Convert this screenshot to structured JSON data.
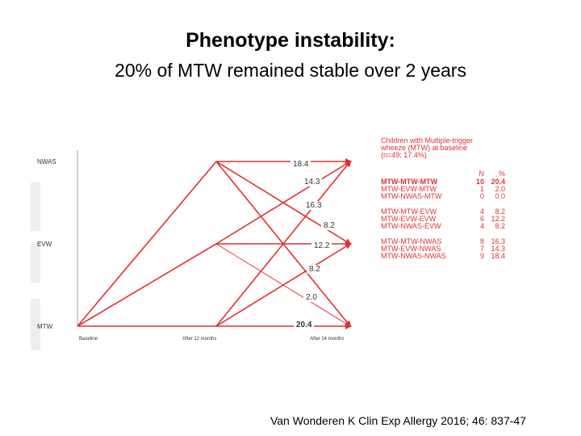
{
  "title": "Phenotype instability:",
  "subtitle": "20% of MTW remained stable over 2 years",
  "diagram": {
    "states": [
      "NWAS",
      "EVW",
      "MTW"
    ],
    "times": [
      "Baseline",
      "After 12 months",
      "After 24 months"
    ],
    "values": [
      {
        "label": "18.4",
        "bold": false
      },
      {
        "label": "14.3",
        "bold": false
      },
      {
        "label": "16.3",
        "bold": false
      },
      {
        "label": "8.2",
        "bold": false
      },
      {
        "label": "12.2",
        "bold": false
      },
      {
        "label": "8.2",
        "bold": false
      },
      {
        "label": "2.0",
        "bold": false
      },
      {
        "label": "20.4",
        "bold": true
      }
    ],
    "line_color": "#e03030"
  },
  "legend": {
    "heading": [
      "Children with Multiple-trigger",
      "wheeze (MTW) at baseline",
      "(n=49; 17.4%)"
    ],
    "col_n": "N",
    "col_pct": "%",
    "groups": [
      [
        {
          "path": "MTW-MTW-MTW",
          "n": "10",
          "pct": "20.4",
          "bold": true
        },
        {
          "path": "MTW-EVW-MTW",
          "n": "1",
          "pct": "2.0",
          "bold": false
        },
        {
          "path": "MTW-NWAS-MTW",
          "n": "0",
          "pct": "0.0",
          "bold": false
        }
      ],
      [
        {
          "path": "MTW-MTW-EVW",
          "n": "4",
          "pct": "8.2",
          "bold": false
        },
        {
          "path": "MTW-EVW-EVW",
          "n": "6",
          "pct": "12.2",
          "bold": false
        },
        {
          "path": "MTW-NWAS-EVW",
          "n": "4",
          "pct": "8.2",
          "bold": false
        }
      ],
      [
        {
          "path": "MTW-MTW-NWAS",
          "n": "8",
          "pct": "16.3",
          "bold": false
        },
        {
          "path": "MTW-EVW-NWAS",
          "n": "7",
          "pct": "14.3",
          "bold": false
        },
        {
          "path": "MTW-NWAS-NWAS",
          "n": "9",
          "pct": "18.4",
          "bold": false
        }
      ]
    ]
  },
  "citation": "Van Wonderen K Clin Exp Allergy 2016; 46: 837-47"
}
